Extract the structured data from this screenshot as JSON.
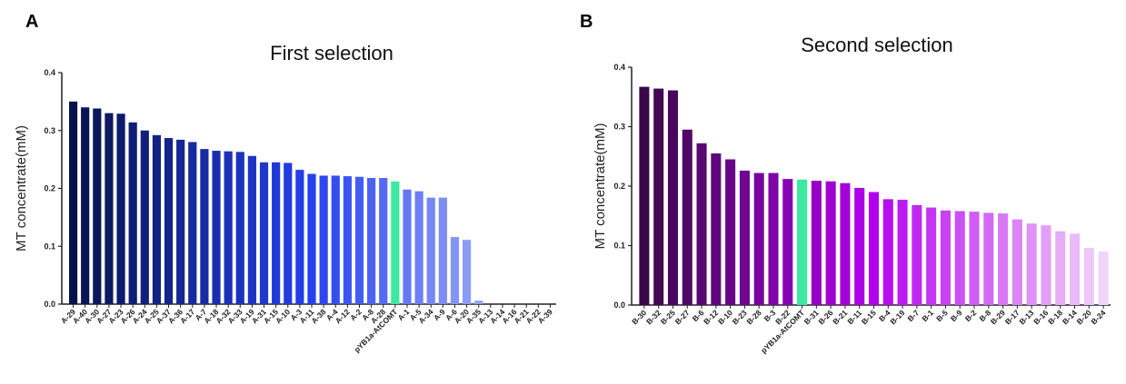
{
  "chart_data": [
    {
      "panel": "A",
      "type": "bar",
      "title": "First selection",
      "xlabel": "",
      "ylabel": "MT concentrate(mM)",
      "ylim": [
        0,
        0.4
      ],
      "yticks": [
        "0.0",
        "0.1",
        "0.2",
        "0.3",
        "0.4"
      ],
      "grid": false,
      "categories": [
        "A-29",
        "A-40",
        "A-30",
        "A-27",
        "A-23",
        "A-26",
        "A-24",
        "A-25",
        "A-37",
        "A-36",
        "A-17",
        "A-7",
        "A-18",
        "A-32",
        "A-33",
        "A-19",
        "A-31",
        "A-15",
        "A-10",
        "A-3",
        "A-11",
        "A-38",
        "A-4",
        "A-12",
        "A-2",
        "A-8",
        "A-28",
        "pYB1a-AtCOMT",
        "A-1",
        "A-5",
        "A-34",
        "A-9",
        "A-6",
        "A-20",
        "A-35",
        "A-13",
        "A-14",
        "A-16",
        "A-21",
        "A-22",
        "A-39"
      ],
      "values": [
        0.35,
        0.34,
        0.338,
        0.33,
        0.329,
        0.314,
        0.3,
        0.292,
        0.287,
        0.284,
        0.28,
        0.268,
        0.265,
        0.264,
        0.263,
        0.256,
        0.245,
        0.245,
        0.244,
        0.232,
        0.225,
        0.222,
        0.222,
        0.221,
        0.22,
        0.218,
        0.218,
        0.212,
        0.198,
        0.195,
        0.184,
        0.184,
        0.116,
        0.111,
        0.006,
        0,
        0,
        0,
        0,
        0,
        0
      ],
      "colors": {
        "start": "#08124a",
        "mid": "#2440f0",
        "end": "#c4cdf8",
        "control": "#3de8a0"
      }
    },
    {
      "panel": "B",
      "type": "bar",
      "title": "Second selection",
      "xlabel": "",
      "ylabel": "MT concentrate(mM)",
      "ylim": [
        0,
        0.4
      ],
      "yticks": [
        "0.0",
        "0.1",
        "0.2",
        "0.3",
        "0.4"
      ],
      "grid": false,
      "categories": [
        "B-30",
        "B-32",
        "B-25",
        "B-27",
        "B-6",
        "B-12",
        "B-10",
        "B-23",
        "B-28",
        "B-3",
        "B-22",
        "pYB1a-AtCOMT",
        "B-31",
        "B-26",
        "B-21",
        "B-11",
        "B-15",
        "B-4",
        "B-19",
        "B-7",
        "B-1",
        "B-5",
        "B-9",
        "B-2",
        "B-8",
        "B-29",
        "B-17",
        "B-13",
        "B-16",
        "B-18",
        "B-14",
        "B-20",
        "B-24"
      ],
      "values": [
        0.367,
        0.364,
        0.361,
        0.295,
        0.272,
        0.255,
        0.245,
        0.226,
        0.222,
        0.222,
        0.212,
        0.211,
        0.209,
        0.208,
        0.205,
        0.197,
        0.19,
        0.178,
        0.177,
        0.168,
        0.164,
        0.159,
        0.158,
        0.157,
        0.155,
        0.154,
        0.144,
        0.137,
        0.134,
        0.124,
        0.12,
        0.096,
        0.09
      ],
      "colors": {
        "start": "#3a0848",
        "mid": "#b400f0",
        "end": "#f2d4fa",
        "control": "#3de8a0"
      }
    }
  ]
}
